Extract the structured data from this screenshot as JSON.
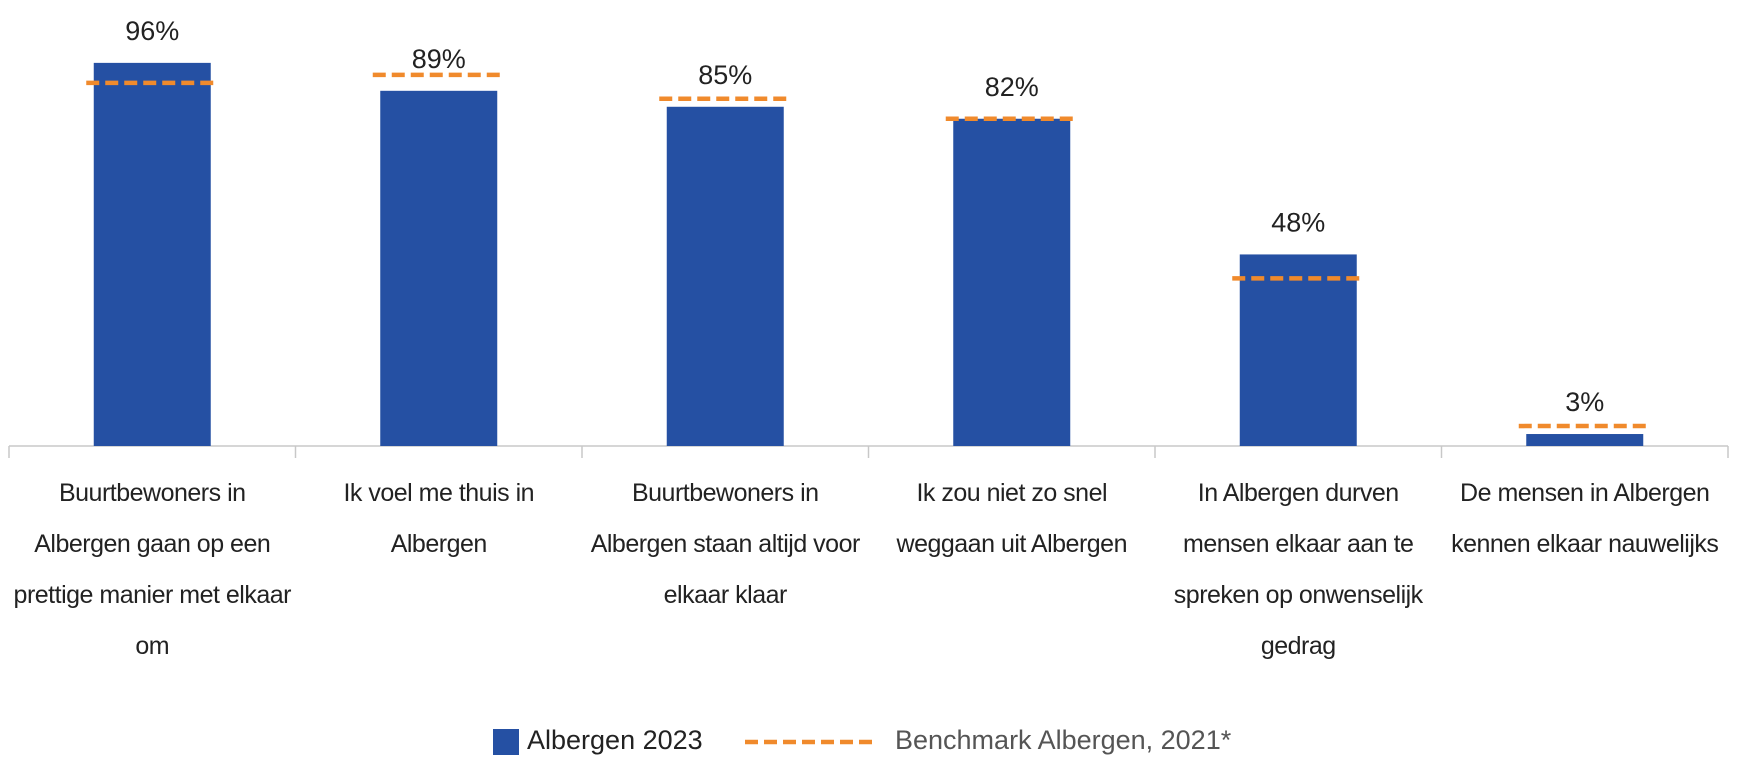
{
  "chart_data": {
    "type": "bar",
    "categories": [
      "Buurtbewoners in Albergen gaan op een prettige manier met elkaar om",
      "Ik voel me thuis in Albergen",
      "Buurtbewoners in Albergen staan altijd voor elkaar klaar",
      "Ik zou niet zo snel weggaan uit Albergen",
      "In Albergen durven mensen elkaar aan te spreken op onwenselijk gedrag",
      "De mensen in Albergen kennen elkaar nauwelijks"
    ],
    "series": [
      {
        "name": "Albergen 2023",
        "color": "#2550a3",
        "values": [
          96,
          89,
          85,
          82,
          48,
          3
        ],
        "value_labels": [
          "96%",
          "89%",
          "85%",
          "82%",
          "48%",
          "3%"
        ]
      },
      {
        "name": "Benchmark Albergen, 2021*",
        "color": "#f08a2c",
        "style": "dashed",
        "values": [
          91,
          93,
          87,
          82,
          42,
          5
        ]
      }
    ],
    "ylim": [
      0,
      110
    ],
    "legend": "bottom"
  }
}
